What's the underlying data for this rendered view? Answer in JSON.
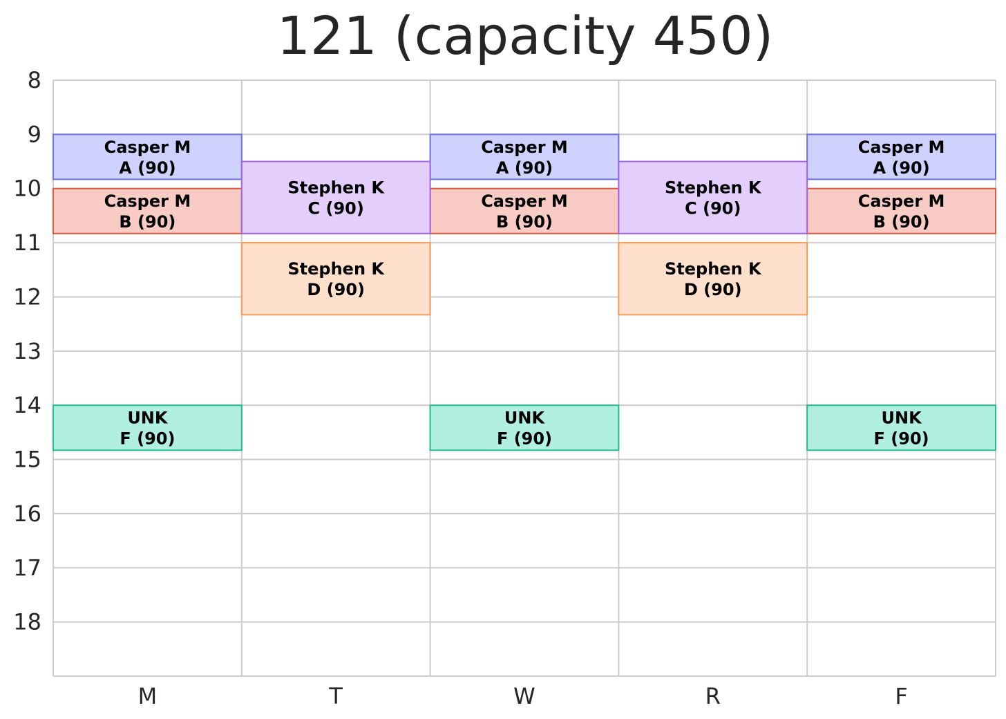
{
  "chart_data": {
    "type": "timetable",
    "title": "121 (capacity 450)",
    "days": [
      "M",
      "T",
      "W",
      "R",
      "F"
    ],
    "hours": [
      8,
      9,
      10,
      11,
      12,
      13,
      14,
      15,
      16,
      17,
      18
    ],
    "ylim": [
      8,
      19
    ],
    "grid": true,
    "sections": [
      {
        "id": "A",
        "label": "Casper M",
        "sublabel": "A (90)",
        "days": [
          "M",
          "W",
          "F"
        ],
        "start": 9.0,
        "end": 9.83,
        "fill": "#cfd1ff",
        "stroke": "#6a72e4"
      },
      {
        "id": "B",
        "label": "Casper M",
        "sublabel": "B (90)",
        "days": [
          "M",
          "W",
          "F"
        ],
        "start": 10.0,
        "end": 10.83,
        "fill": "#f8cbc4",
        "stroke": "#e0573f"
      },
      {
        "id": "C",
        "label": "Stephen K",
        "sublabel": "C (90)",
        "days": [
          "T",
          "R"
        ],
        "start": 9.5,
        "end": 10.83,
        "fill": "#e4cffc",
        "stroke": "#a062e6"
      },
      {
        "id": "D",
        "label": "Stephen K",
        "sublabel": "D (90)",
        "days": [
          "T",
          "R"
        ],
        "start": 11.0,
        "end": 12.33,
        "fill": "#ffe0cd",
        "stroke": "#f59a58"
      },
      {
        "id": "F",
        "label": "UNK",
        "sublabel": "F (90)",
        "days": [
          "M",
          "W",
          "F"
        ],
        "start": 14.0,
        "end": 14.83,
        "fill": "#b1efe0",
        "stroke": "#1fbf8e"
      }
    ]
  }
}
